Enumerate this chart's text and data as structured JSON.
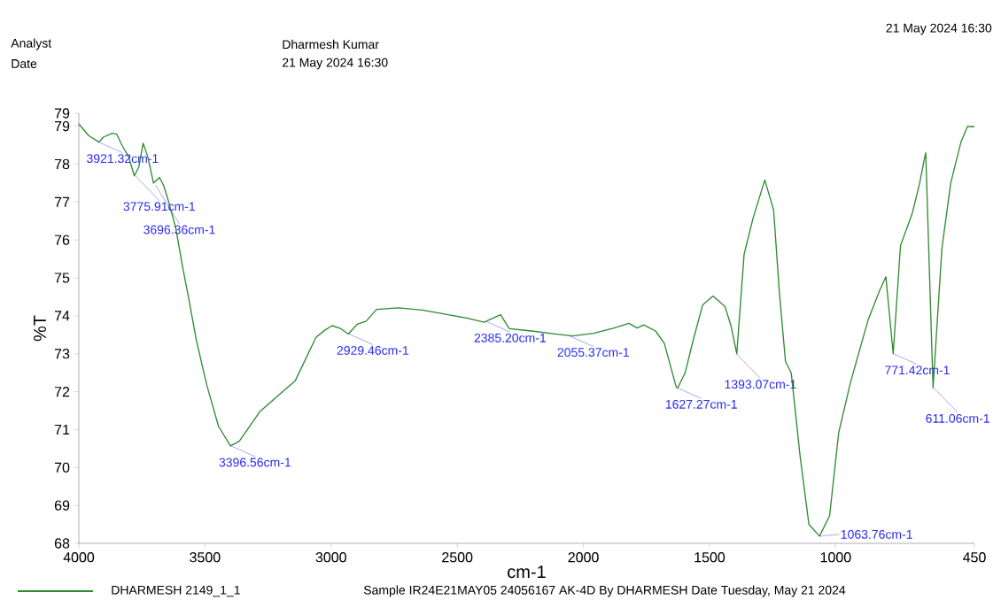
{
  "chart_data": {
    "type": "line",
    "xlabel": "cm-1",
    "ylabel": "%T",
    "xlim": [
      4000,
      450
    ],
    "ylim": [
      68,
      79.34
    ],
    "xticks": [
      4000,
      3500,
      3000,
      2500,
      2000,
      1500,
      1000,
      450
    ],
    "yticks": [
      68,
      69,
      70,
      71,
      72,
      73,
      74,
      75,
      76,
      77,
      78,
      79,
      {
        "value": 79.34,
        "label": "79"
      }
    ],
    "legend": "bottom",
    "grid": false,
    "marker": "none",
    "series": [
      {
        "name": "DHARMESH 2149_1_1",
        "color": "#2e8b2e",
        "line_style": "solid",
        "x": [
          4000,
          3961,
          3920,
          3903,
          3868,
          3850,
          3827,
          3803,
          3780,
          3762,
          3745,
          3727,
          3704,
          3680,
          3663,
          3645,
          3616,
          3587,
          3564,
          3534,
          3493,
          3446,
          3399,
          3364,
          3283,
          3189,
          3142,
          3060,
          3025,
          2996,
          2961,
          2932,
          2896,
          2861,
          2820,
          2732,
          2639,
          2545,
          2463,
          2393,
          2358,
          2328,
          2294,
          2206,
          2112,
          2042,
          1960,
          1878,
          1820,
          1787,
          1761,
          1714,
          1679,
          1632,
          1626,
          1597,
          1562,
          1527,
          1486,
          1439,
          1415,
          1392,
          1363,
          1328,
          1281,
          1246,
          1223,
          1199,
          1176,
          1141,
          1106,
          1064,
          1024,
          988,
          941,
          871,
          825,
          801,
          772,
          743,
          696,
          667,
          649,
          643,
          614,
          579,
          544,
          503,
          478,
          450
        ],
        "values": [
          79.06,
          78.75,
          78.58,
          78.71,
          78.81,
          78.79,
          78.47,
          78.2,
          77.69,
          77.93,
          78.55,
          78.2,
          77.5,
          77.65,
          77.42,
          77.03,
          76.32,
          75.23,
          74.44,
          73.35,
          72.18,
          71.08,
          70.57,
          70.69,
          71.47,
          72.02,
          72.29,
          73.43,
          73.62,
          73.74,
          73.66,
          73.52,
          73.78,
          73.86,
          74.17,
          74.21,
          74.15,
          74.04,
          73.94,
          73.83,
          73.94,
          74.03,
          73.66,
          73.6,
          73.52,
          73.47,
          73.54,
          73.68,
          73.8,
          73.68,
          73.76,
          73.6,
          73.27,
          72.12,
          72.1,
          72.49,
          73.43,
          74.29,
          74.52,
          74.25,
          73.74,
          73.0,
          75.62,
          76.56,
          77.58,
          76.79,
          74.6,
          72.8,
          72.49,
          70.3,
          68.5,
          68.19,
          68.73,
          70.92,
          72.25,
          73.9,
          74.68,
          75.03,
          73.0,
          75.85,
          76.71,
          77.5,
          78.12,
          78.3,
          72.1,
          75.77,
          77.5,
          78.59,
          78.99,
          78.99
        ]
      }
    ],
    "annotations": [
      "21 May 2024 16:30",
      "Analyst",
      "Dharmesh Kumar",
      "Date",
      "21 May 2024 16:30",
      "Sample IR24E21MAY05 24056167 AK-4D By DHARMESH Date Tuesday, May 21 2024",
      {
        "text": "3921.32cm-1",
        "x": 3921.32,
        "y": 78.58
      },
      {
        "text": "3775.91cm-1",
        "x": 3775.91,
        "y": 77.69
      },
      {
        "text": "3696.36cm-1",
        "x": 3696.36,
        "y": 77.45
      },
      {
        "text": "3396.56cm-1",
        "x": 3396.56,
        "y": 70.57
      },
      {
        "text": "2929.46cm-1",
        "x": 2929.46,
        "y": 73.52
      },
      {
        "text": "2385.20cm-1",
        "x": 2385.2,
        "y": 73.85
      },
      {
        "text": "2055.37cm-1",
        "x": 2055.37,
        "y": 73.47
      },
      {
        "text": "1627.27cm-1",
        "x": 1627.27,
        "y": 72.1
      },
      {
        "text": "1393.07cm-1",
        "x": 1393.07,
        "y": 73.0
      },
      {
        "text": "1063.76cm-1",
        "x": 1063.76,
        "y": 68.19
      },
      {
        "text": "771.42cm-1",
        "x": 771.42,
        "y": 73.0
      },
      {
        "text": "611.06cm-1",
        "x": 611.06,
        "y": 72.1
      }
    ]
  }
}
